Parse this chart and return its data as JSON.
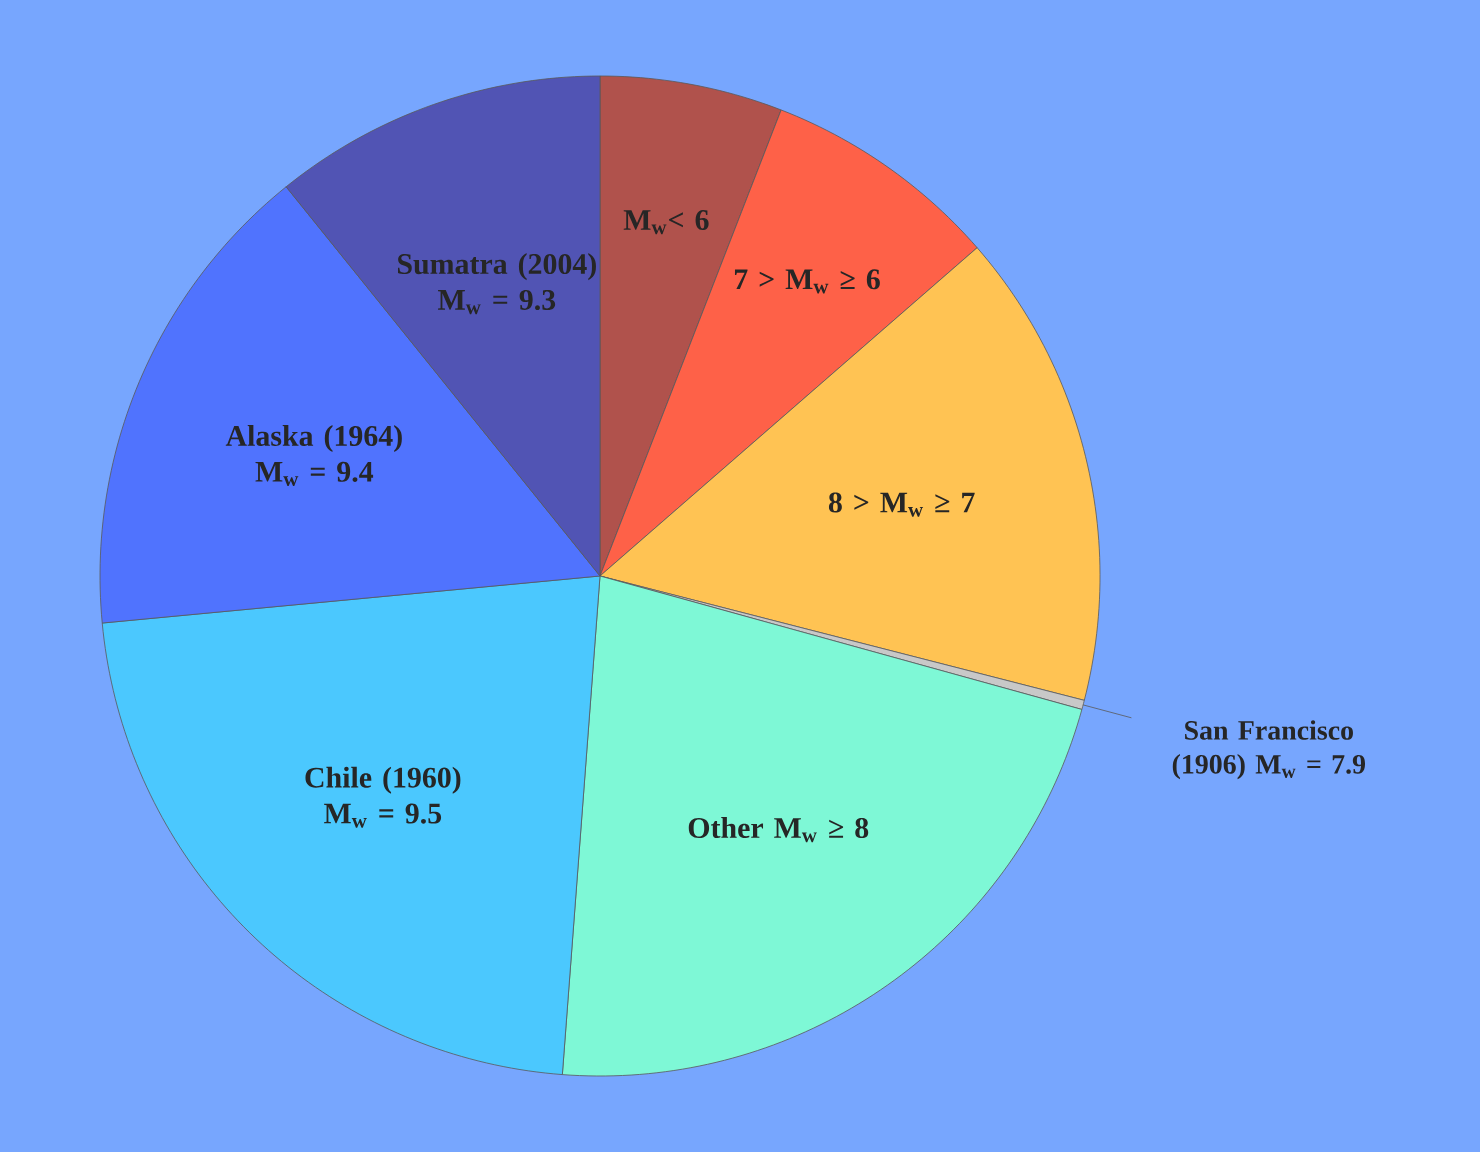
{
  "chart_data": {
    "type": "pie",
    "categories": [
      "M$_{w}$< 6",
      "7 > M$_{w}$ ≥ 6",
      "8 > M$_{w}$ ≥ 7",
      "San Francisco (1906) M$_{w}$ = 7.9",
      "Other M$_{w}$ ≥ 8",
      "Chile (1960) M$_{w}$ = 9.5",
      "Alaska (1964) M$_{w}$ = 9.4",
      "Sumatra (2004) M$_{w}$ = 9.3"
    ],
    "values": [
      5.9,
      7.7,
      15.4,
      0.3,
      21.9,
      22.3,
      15.7,
      10.8
    ],
    "colors": [
      "#b0524c",
      "#fe6148",
      "#ffc353",
      "#c8c8c8",
      "#7ef8d6",
      "#4bc8fe",
      "#5073fe",
      "#5154b4"
    ]
  }
}
